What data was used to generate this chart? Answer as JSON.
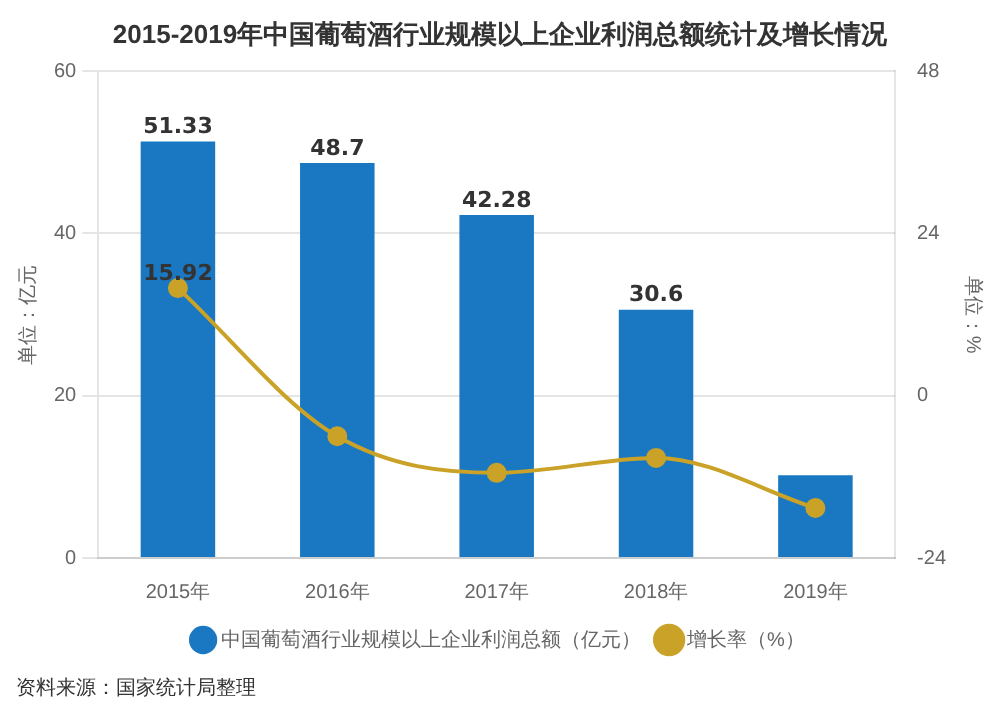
{
  "chart_data": {
    "type": "bar",
    "title": "2015-2019年中国葡萄酒行业规模以上企业利润总额统计及增长情况",
    "ylabel": "单位：亿元",
    "y2label": "单位：%",
    "categories": [
      "2015年",
      "2016年",
      "2017年",
      "2018年",
      "2019年"
    ],
    "series": [
      {
        "name": "中国葡萄酒行业规模以上企业利润总额（亿元）",
        "color": "#1a78c2",
        "values": [
          51.33,
          48.7,
          42.28,
          30.6,
          10.2
        ],
        "value_labels": [
          "51.33",
          "48.7",
          "42.28",
          "30.6",
          null
        ]
      },
      {
        "name": "增长率（%）",
        "type": "line",
        "axis": "y2",
        "color": "#c9a227",
        "marker": "circle",
        "values": [
          15.92,
          -6,
          -11.4,
          -9.2,
          -16.6
        ],
        "value_labels": [
          "15.92",
          null,
          null,
          null,
          null
        ]
      }
    ],
    "ylim": [
      0,
      60
    ],
    "yticks": [
      0,
      20,
      40,
      60
    ],
    "y2lim": [
      -24,
      48
    ],
    "y2ticks": [
      -24,
      0,
      24,
      48
    ],
    "grid": "y",
    "legend": "bottom",
    "annotations": [
      "资料来源：国家统计局整理"
    ]
  }
}
